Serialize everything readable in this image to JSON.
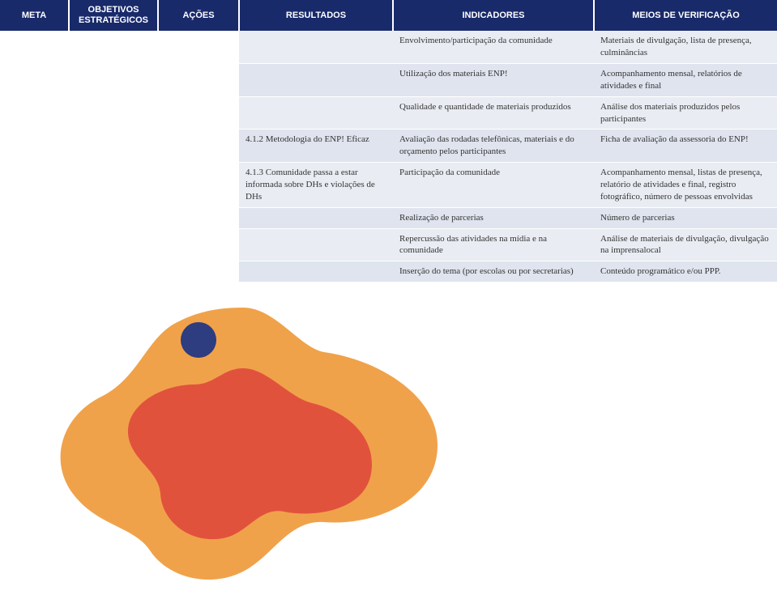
{
  "header": {
    "cols": [
      "META",
      "OBJETIVOS ESTRATÉGICOS",
      "AÇÕES",
      "RESULTADOS",
      "INDICADORES",
      "MEIOS DE VERIFICAÇÃO"
    ]
  },
  "rows": [
    {
      "res": "",
      "ind": "Envolvimento/participação da comunidade",
      "ver": "Materiais de divulgação, lista de presença, culminâncias"
    },
    {
      "res": "",
      "ind": "Utilização dos materiais ENP!",
      "ver": "Acompanhamento mensal, relatórios de atividades e final"
    },
    {
      "res": "",
      "ind": "Qualidade e quantidade de materiais produzidos",
      "ver": "Análise dos materiais produzidos pelos participantes"
    },
    {
      "res": "4.1.2 Metodologia do ENP! Eficaz",
      "ind": "Avaliação das rodadas telefônicas, materiais e do orçamento pelos participantes",
      "ver": "Ficha de avaliação da assessoria do ENP!"
    },
    {
      "res": "4.1.3 Comunidade passa a estar informada sobre DHs e violações de DHs",
      "ind": "Participação da comunidade",
      "ver": " Acompanhamento mensal, listas de presença, relatório de atividades e final, registro fotográfico, número de pessoas envolvidas"
    },
    {
      "res": "",
      "ind": "Realização de parcerias",
      "ver": "Número de parcerias"
    },
    {
      "res": "",
      "ind": "Repercussão das atividades na mídia e na comunidade",
      "ver": "Análise de materiais de divulgação, divulgação na imprensalocal"
    },
    {
      "res": "",
      "ind": "Inserção do tema (por escolas ou por secretarias)",
      "ver": "Conteúdo programático e/ou PPP."
    }
  ],
  "colors": {
    "header_bg": "#192a6b",
    "row_a": "#e9edf3",
    "row_b": "#dfe4ee",
    "splash_outer": "#f0a24a",
    "splash_inner": "#e1523d",
    "splash_dot": "#2e3c80"
  }
}
